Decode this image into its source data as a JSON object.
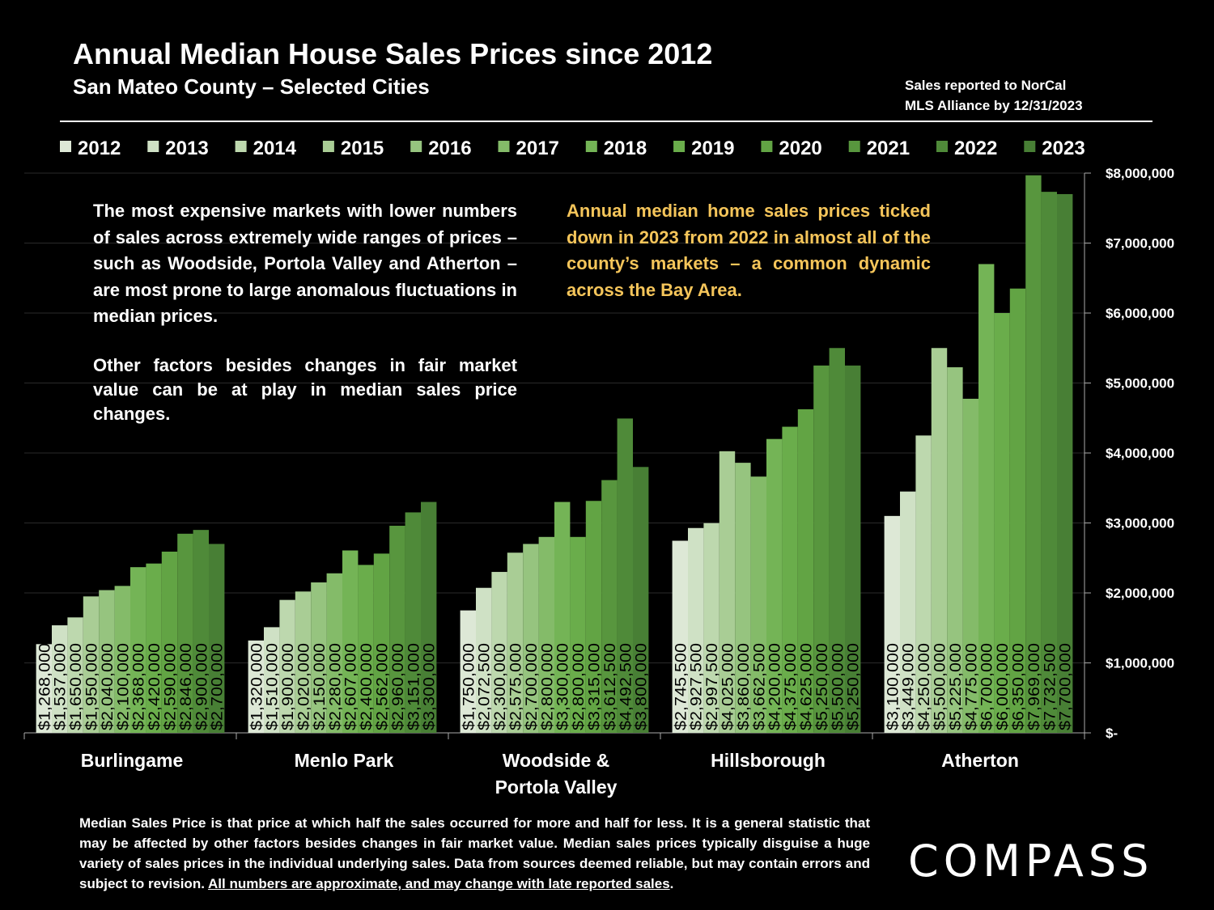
{
  "header": {
    "title": "Annual Median House Sales Prices since 2012",
    "subtitle": "San Mateo County – Selected Cities",
    "source_line1": "Sales reported to NorCal",
    "source_line2": "MLS Alliance by 12/31/2023"
  },
  "notes": {
    "left_p1": "The most expensive markets with lower numbers of sales across extremely wide ranges of prices – such as Woodside, Portola Valley and Atherton – are most prone to large anomalous fluctuations in median prices.",
    "left_p2": "Other factors besides changes in fair market value can be at play in median sales price changes.",
    "right": "Annual median home sales prices ticked down in 2023 from 2022 in almost all of the county’s markets – a common dynamic across the Bay Area."
  },
  "footnote": {
    "text": "Median Sales Price is that price at which half the sales occurred for more and half for less. It is a general statistic that may be affected by other factors besides changes in fair market value. Median sales prices typically disguise a huge variety of sales prices in the individual underlying sales. Data from sources deemed reliable, but may contain errors and subject to revision. ",
    "underlined": "All numbers are approximate, and may change with late reported sales",
    "end": "."
  },
  "logo": {
    "text": "COMPASS"
  },
  "colors": {
    "background": "#000000",
    "accent_text": "#f5c55a",
    "series": [
      "#dde8d6",
      "#cfe1c5",
      "#bdd8ae",
      "#a9cd95",
      "#96c47f",
      "#84bb69",
      "#74b456",
      "#6aad4b",
      "#62a444",
      "#58963e",
      "#4f8a39",
      "#487f35"
    ]
  },
  "chart_data": {
    "type": "bar",
    "title": "Annual Median House Sales Prices since 2012",
    "subtitle": "San Mateo County – Selected Cities",
    "categories": [
      "Burlingame",
      "Menlo Park",
      "Woodside & Portola Valley",
      "Hillsborough",
      "Atherton"
    ],
    "category_lines": [
      [
        "Burlingame"
      ],
      [
        "Menlo Park"
      ],
      [
        "Woodside &",
        "Portola Valley"
      ],
      [
        "Hillsborough"
      ],
      [
        "Atherton"
      ]
    ],
    "legend_position": "top",
    "y_axis_position": "right",
    "ylim": [
      0,
      8000000
    ],
    "y_ticks": [
      0,
      1000000,
      2000000,
      3000000,
      4000000,
      5000000,
      6000000,
      7000000,
      8000000
    ],
    "y_tick_labels": [
      "$-",
      "$1,000,000",
      "$2,000,000",
      "$3,000,000",
      "$4,000,000",
      "$5,000,000",
      "$6,000,000",
      "$7,000,000",
      "$8,000,000"
    ],
    "series": [
      {
        "name": "2012",
        "values": [
          1268000,
          1320000,
          1750000,
          2745500,
          3100000
        ],
        "labels": [
          "$1,268,000",
          "$1,320,000",
          "$1,750,000",
          "$2,745,500",
          "$3,100,000"
        ]
      },
      {
        "name": "2013",
        "values": [
          1537000,
          1510000,
          2072500,
          2927500,
          3449000
        ],
        "labels": [
          "$1,537,000",
          "$1,510,000",
          "$2,072,500",
          "$2,927,500",
          "$3,449,000"
        ]
      },
      {
        "name": "2014",
        "values": [
          1650000,
          1900000,
          2300000,
          2997500,
          4250000
        ],
        "labels": [
          "$1,650,000",
          "$1,900,000",
          "$2,300,000",
          "$2,997,500",
          "$4,250,000"
        ]
      },
      {
        "name": "2015",
        "values": [
          1950000,
          2020000,
          2575000,
          4025000,
          5500000
        ],
        "labels": [
          "$1,950,000",
          "$2,020,000",
          "$2,575,000",
          "$4,025,000",
          "$5,500,000"
        ]
      },
      {
        "name": "2016",
        "values": [
          2040000,
          2150000,
          2700000,
          3860000,
          5225000
        ],
        "labels": [
          "$2,040,000",
          "$2,150,000",
          "$2,700,000",
          "$3,860,000",
          "$5,225,000"
        ]
      },
      {
        "name": "2017",
        "values": [
          2100000,
          2280000,
          2800000,
          3662500,
          4775000
        ],
        "labels": [
          "$2,100,000",
          "$2,280,000",
          "$2,800,000",
          "$3,662,500",
          "$4,775,000"
        ]
      },
      {
        "name": "2018",
        "values": [
          2368000,
          2607000,
          3300000,
          4200000,
          6700000
        ],
        "labels": [
          "$2,368,000",
          "$2,607,000",
          "$3,300,000",
          "$4,200,000",
          "$6,700,000"
        ]
      },
      {
        "name": "2019",
        "values": [
          2420000,
          2400000,
          2800000,
          4375000,
          6000000
        ],
        "labels": [
          "$2,420,000",
          "$2,400,000",
          "$2,800,000",
          "$4,375,000",
          "$6,000,000"
        ]
      },
      {
        "name": "2020",
        "values": [
          2590000,
          2562000,
          3315000,
          4625000,
          6350000
        ],
        "labels": [
          "$2,590,000",
          "$2,562,000",
          "$3,315,000",
          "$4,625,000",
          "$6,350,000"
        ]
      },
      {
        "name": "2021",
        "values": [
          2846000,
          2960000,
          3612500,
          5250000,
          7969000
        ],
        "labels": [
          "$2,846,000",
          "$2,960,000",
          "$3,612,500",
          "$5,250,000",
          "$7,969,000"
        ]
      },
      {
        "name": "2022",
        "values": [
          2900000,
          3151000,
          4492500,
          5500000,
          7732500
        ],
        "labels": [
          "$2,900,000",
          "$3,151,000",
          "$4,492,500",
          "$5,500,000",
          "$7,732,500"
        ]
      },
      {
        "name": "2023",
        "values": [
          2700000,
          3300000,
          3800000,
          5250000,
          7700000
        ],
        "labels": [
          "$2,700,000",
          "$3,300,000",
          "$3,800,000",
          "$5,250,000",
          "$7,700,000"
        ]
      }
    ]
  }
}
